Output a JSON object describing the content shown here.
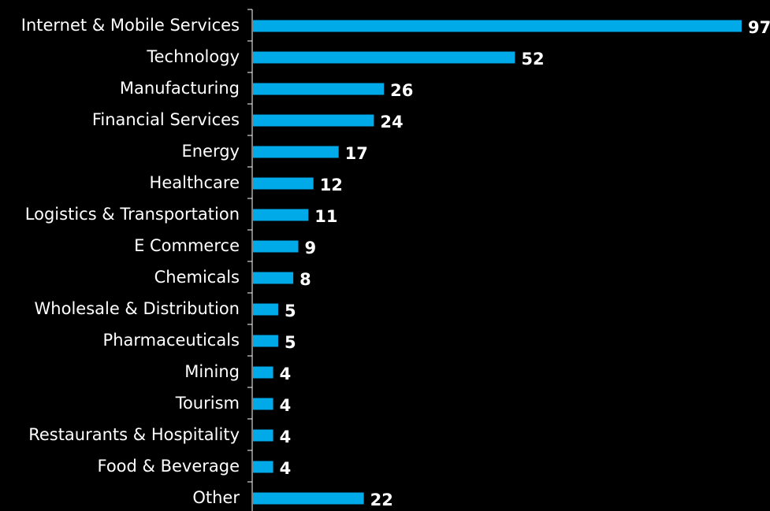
{
  "chart_data": {
    "type": "bar",
    "orientation": "horizontal",
    "categories": [
      "Internet & Mobile Services",
      "Technology",
      "Manufacturing",
      "Financial Services",
      "Energy",
      "Healthcare",
      "Logistics & Transportation",
      "E Commerce",
      "Chemicals",
      "Wholesale & Distribution",
      "Pharmaceuticals",
      "Mining",
      "Tourism",
      "Restaurants & Hospitality",
      "Food & Beverage",
      "Other"
    ],
    "values": [
      97,
      52,
      26,
      24,
      17,
      12,
      11,
      9,
      8,
      5,
      5,
      4,
      4,
      4,
      4,
      22
    ],
    "value_labels": [
      "97",
      "52",
      "26",
      "24",
      "17",
      "12",
      "11",
      "9",
      "8",
      "5",
      "5",
      "4",
      "4",
      "4",
      "4",
      "22"
    ],
    "xlim": [
      0,
      97
    ],
    "grid": false,
    "legend": "none",
    "data_labels": "outside-end",
    "colors": {
      "background": "#000000",
      "bar": "#00a9e8",
      "text": "#ffffff",
      "axis": "#ffffff"
    }
  }
}
